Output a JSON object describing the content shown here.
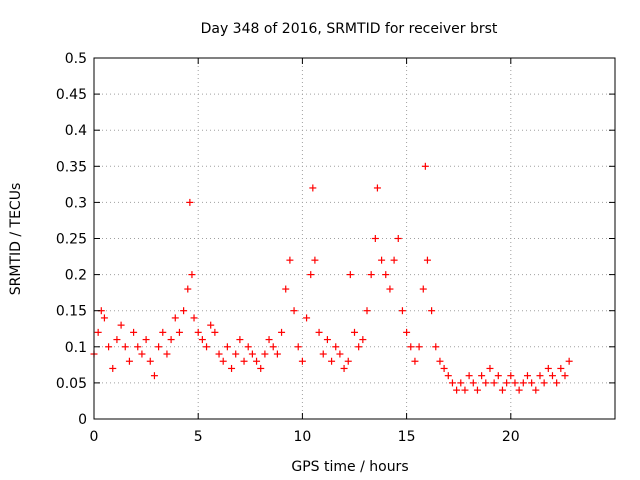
{
  "chart_data": {
    "type": "scatter",
    "title": "Day 348 of 2016, SRMTID for receiver brst",
    "xlabel": "GPS time / hours",
    "ylabel": "SRMTID / TECUs",
    "xlim": [
      0,
      25
    ],
    "ylim": [
      0,
      0.5
    ],
    "x_ticks": [
      0,
      5,
      10,
      15,
      20
    ],
    "x_tick_labels": [
      "0",
      "5",
      "10",
      "15",
      "20"
    ],
    "y_ticks": [
      0,
      0.05,
      0.1,
      0.15,
      0.2,
      0.25,
      0.3,
      0.35,
      0.4,
      0.45,
      0.5
    ],
    "y_tick_labels": [
      "0",
      "0.05",
      "0.1",
      "0.15",
      "0.2",
      "0.25",
      "0.3",
      "0.35",
      "0.4",
      "0.45",
      "0.5"
    ],
    "grid": true,
    "marker": "+",
    "color": "#ff0000",
    "series": [
      {
        "name": "SRMTID",
        "x": [
          0.0,
          0.2,
          0.35,
          0.5,
          0.7,
          0.9,
          1.1,
          1.3,
          1.5,
          1.7,
          1.9,
          2.1,
          2.3,
          2.5,
          2.7,
          2.9,
          3.1,
          3.3,
          3.5,
          3.7,
          3.9,
          4.1,
          4.3,
          4.5,
          4.6,
          4.7,
          4.8,
          5.0,
          5.2,
          5.4,
          5.6,
          5.8,
          6.0,
          6.2,
          6.4,
          6.6,
          6.8,
          7.0,
          7.2,
          7.4,
          7.6,
          7.8,
          8.0,
          8.2,
          8.4,
          8.6,
          8.8,
          9.0,
          9.2,
          9.4,
          9.6,
          9.8,
          10.0,
          10.2,
          10.4,
          10.5,
          10.6,
          10.8,
          11.0,
          11.2,
          11.4,
          11.6,
          11.8,
          12.0,
          12.2,
          12.3,
          12.5,
          12.7,
          12.9,
          13.1,
          13.3,
          13.5,
          13.6,
          13.8,
          14.0,
          14.2,
          14.4,
          14.6,
          14.8,
          15.0,
          15.2,
          15.4,
          15.6,
          15.8,
          15.9,
          16.0,
          16.2,
          16.4,
          16.6,
          16.8,
          17.0,
          17.2,
          17.4,
          17.6,
          17.8,
          18.0,
          18.2,
          18.4,
          18.6,
          18.8,
          19.0,
          19.2,
          19.4,
          19.6,
          19.8,
          20.0,
          20.2,
          20.4,
          20.6,
          20.8,
          21.0,
          21.2,
          21.4,
          21.6,
          21.8,
          22.0,
          22.2,
          22.4,
          22.6,
          22.8
        ],
        "y": [
          0.09,
          0.12,
          0.15,
          0.14,
          0.1,
          0.07,
          0.11,
          0.13,
          0.1,
          0.08,
          0.12,
          0.1,
          0.09,
          0.11,
          0.08,
          0.06,
          0.1,
          0.12,
          0.09,
          0.11,
          0.14,
          0.12,
          0.15,
          0.18,
          0.3,
          0.2,
          0.14,
          0.12,
          0.11,
          0.1,
          0.13,
          0.12,
          0.09,
          0.08,
          0.1,
          0.07,
          0.09,
          0.11,
          0.08,
          0.1,
          0.09,
          0.08,
          0.07,
          0.09,
          0.11,
          0.1,
          0.09,
          0.12,
          0.18,
          0.22,
          0.15,
          0.1,
          0.08,
          0.14,
          0.2,
          0.32,
          0.22,
          0.12,
          0.09,
          0.11,
          0.08,
          0.1,
          0.09,
          0.07,
          0.08,
          0.2,
          0.12,
          0.1,
          0.11,
          0.15,
          0.2,
          0.25,
          0.32,
          0.22,
          0.2,
          0.18,
          0.22,
          0.25,
          0.15,
          0.12,
          0.1,
          0.08,
          0.1,
          0.18,
          0.35,
          0.22,
          0.15,
          0.1,
          0.08,
          0.07,
          0.06,
          0.05,
          0.04,
          0.05,
          0.04,
          0.06,
          0.05,
          0.04,
          0.06,
          0.05,
          0.07,
          0.05,
          0.06,
          0.04,
          0.05,
          0.06,
          0.05,
          0.04,
          0.05,
          0.06,
          0.05,
          0.04,
          0.06,
          0.05,
          0.07,
          0.06,
          0.05,
          0.07,
          0.06,
          0.08
        ]
      }
    ]
  }
}
